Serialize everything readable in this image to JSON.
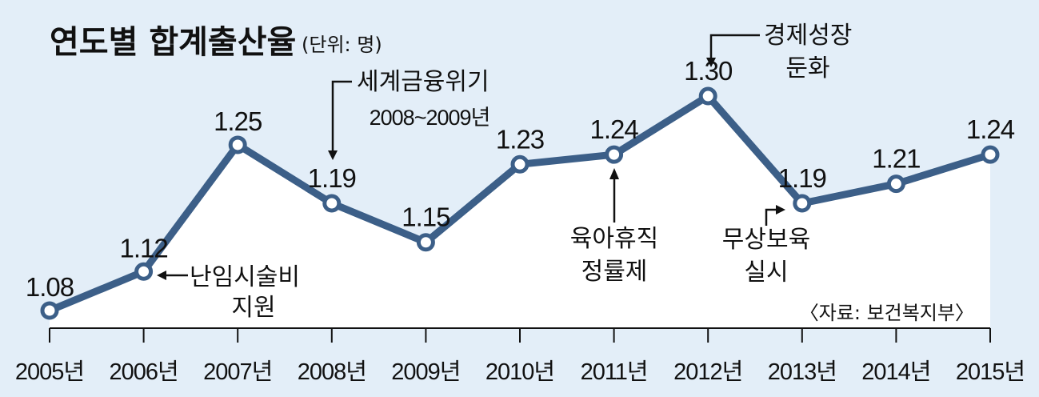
{
  "chart_data": {
    "type": "line",
    "title": "연도별 합계출산율",
    "unit_note": "(단위: 명)",
    "x": [
      "2005년",
      "2006년",
      "2007년",
      "2008년",
      "2009년",
      "2010년",
      "2011년",
      "2012년",
      "2013년",
      "2014년",
      "2015년"
    ],
    "values": [
      1.08,
      1.12,
      1.25,
      1.19,
      1.15,
      1.23,
      1.24,
      1.3,
      1.19,
      1.21,
      1.24
    ],
    "data_labels": [
      "1.08",
      "1.12",
      "1.25",
      "1.19",
      "1.15",
      "1.23",
      "1.24",
      "1.30",
      "1.19",
      "1.21",
      "1.24"
    ],
    "annotations": [
      {
        "year": "2006년",
        "lines": [
          "난임시술비",
          "지원"
        ]
      },
      {
        "year": "2008년",
        "lines": [
          "세계금융위기",
          "2008~2009년"
        ]
      },
      {
        "year": "2011년",
        "lines": [
          "육아휴직",
          "정률제"
        ]
      },
      {
        "year": "2012년",
        "lines": [
          "경제성장",
          "둔화"
        ]
      },
      {
        "year": "2013년",
        "lines": [
          "무상보육",
          "실시"
        ]
      }
    ],
    "source": "〈자료: 보건복지부〉",
    "grid": false,
    "colors": {
      "background": "#e3eef8",
      "area_fill": "#ffffff",
      "line": "#3c5f88",
      "marker_fill": "#ffffff",
      "text": "#111111"
    }
  }
}
